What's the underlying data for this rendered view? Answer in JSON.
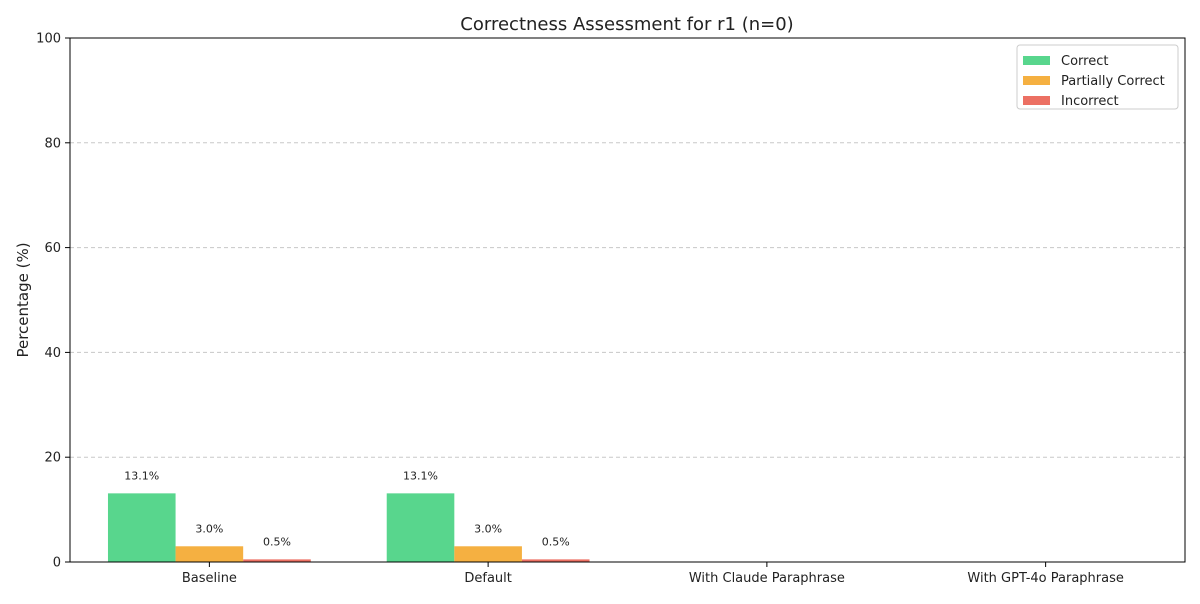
{
  "chart_data": {
    "type": "bar",
    "title": "Correctness Assessment for r1 (n=0)",
    "xlabel": "",
    "ylabel": "Percentage (%)",
    "ylim": [
      0,
      100
    ],
    "yticks": [
      0,
      20,
      40,
      60,
      80,
      100
    ],
    "grid": true,
    "legend_position": "top-right",
    "categories": [
      "Baseline",
      "Default",
      "With Claude Paraphrase",
      "With GPT-4o Paraphrase"
    ],
    "series": [
      {
        "name": "Correct",
        "color": "#58d68d",
        "values": [
          13.1,
          13.1,
          0,
          0
        ],
        "labels": [
          "13.1%",
          "13.1%",
          "",
          ""
        ]
      },
      {
        "name": "Partially Correct",
        "color": "#f5b041",
        "values": [
          3.0,
          3.0,
          0,
          0
        ],
        "labels": [
          "3.0%",
          "3.0%",
          "",
          ""
        ]
      },
      {
        "name": "Incorrect",
        "color": "#ec7063",
        "values": [
          0.5,
          0.5,
          0,
          0
        ],
        "labels": [
          "0.5%",
          "0.5%",
          "",
          ""
        ]
      }
    ]
  }
}
